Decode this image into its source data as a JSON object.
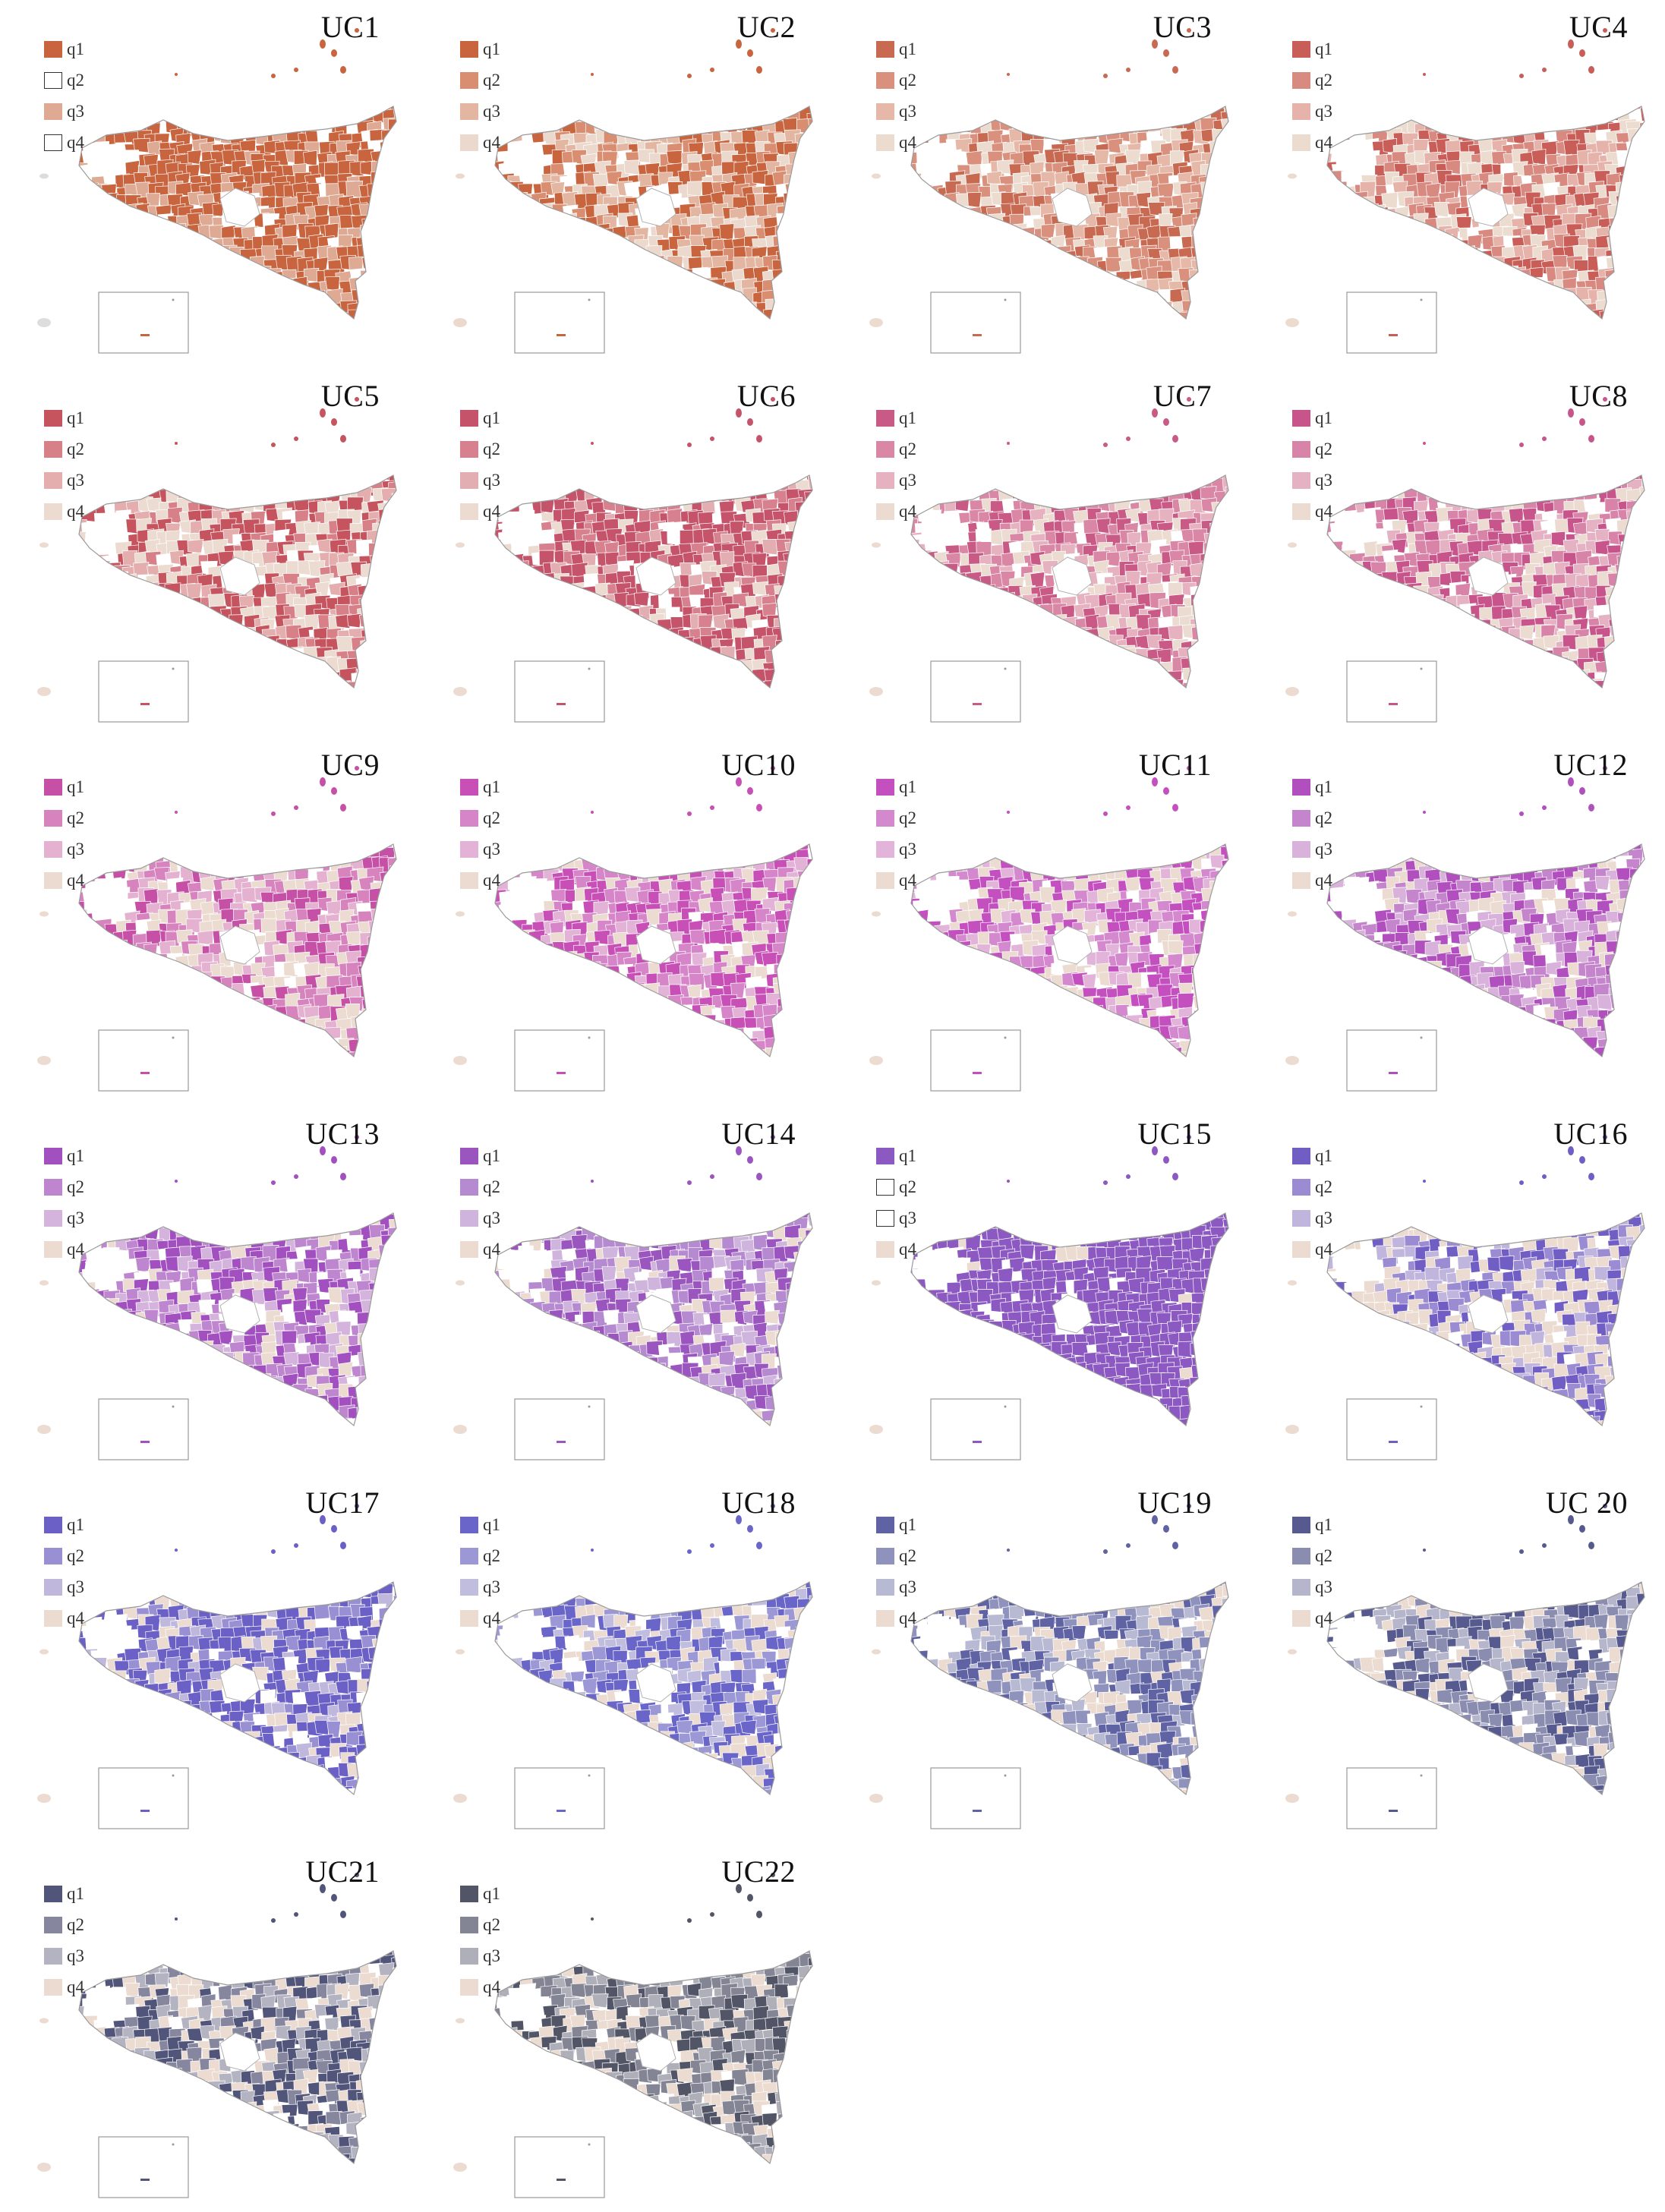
{
  "figure": {
    "legend_labels": [
      "q1",
      "q2",
      "q3",
      "q4"
    ],
    "panels": [
      {
        "title": "UC1",
        "palette": [
          "#c8643e",
          "empty",
          "#dfaa94",
          "empty"
        ],
        "weights": [
          0.72,
          0.0,
          0.28,
          0.0
        ]
      },
      {
        "title": "UC2",
        "palette": [
          "#c8643e",
          "#d98e72",
          "#e3b6a2",
          "#ecd9cd"
        ],
        "weights": [
          0.35,
          0.25,
          0.2,
          0.2
        ]
      },
      {
        "title": "UC3",
        "palette": [
          "#c86a52",
          "#d9917e",
          "#e6b8a8",
          "#ecdcd0"
        ],
        "weights": [
          0.3,
          0.3,
          0.2,
          0.2
        ]
      },
      {
        "title": "UC4",
        "palette": [
          "#c85e57",
          "#d88a80",
          "#e6b3ab",
          "#ecdcd0"
        ],
        "weights": [
          0.3,
          0.3,
          0.2,
          0.2
        ]
      },
      {
        "title": "UC5",
        "palette": [
          "#c5545e",
          "#d88088",
          "#e5aeae",
          "#ebdbd0"
        ],
        "weights": [
          0.35,
          0.15,
          0.15,
          0.35
        ]
      },
      {
        "title": "UC6",
        "palette": [
          "#c5536a",
          "#d7808e",
          "#e3aeb2",
          "#ebdbd0"
        ],
        "weights": [
          0.55,
          0.2,
          0.1,
          0.15
        ]
      },
      {
        "title": "UC7",
        "palette": [
          "#c95985",
          "#d987a4",
          "#e6b2c0",
          "#ebdbd0"
        ],
        "weights": [
          0.3,
          0.3,
          0.2,
          0.2
        ]
      },
      {
        "title": "UC8",
        "palette": [
          "#c7548a",
          "#d884a8",
          "#e5b2c4",
          "#ebdbd0"
        ],
        "weights": [
          0.3,
          0.3,
          0.2,
          0.2
        ]
      },
      {
        "title": "UC9",
        "palette": [
          "#c650a6",
          "#d784be",
          "#e4b2d0",
          "#ebdbd0"
        ],
        "weights": [
          0.25,
          0.25,
          0.25,
          0.25
        ]
      },
      {
        "title": "UC10",
        "palette": [
          "#c74fb6",
          "#d686c8",
          "#e3b3d7",
          "#ebdbd0"
        ],
        "weights": [
          0.4,
          0.3,
          0.15,
          0.15
        ]
      },
      {
        "title": "UC11",
        "palette": [
          "#c450c0",
          "#d488cd",
          "#e2b4da",
          "#ebdbd0"
        ],
        "weights": [
          0.3,
          0.2,
          0.2,
          0.3
        ]
      },
      {
        "title": "UC12",
        "palette": [
          "#b04fbd",
          "#c485cc",
          "#d8b2db",
          "#ebdbd0"
        ],
        "weights": [
          0.3,
          0.3,
          0.2,
          0.2
        ]
      },
      {
        "title": "UC13",
        "palette": [
          "#a24fc0",
          "#bd86cf",
          "#d4b3dc",
          "#ebdbd0"
        ],
        "weights": [
          0.35,
          0.3,
          0.2,
          0.15
        ]
      },
      {
        "title": "UC14",
        "palette": [
          "#9a55bf",
          "#b58ad0",
          "#cfb5dd",
          "#ebdbd0"
        ],
        "weights": [
          0.35,
          0.3,
          0.2,
          0.15
        ]
      },
      {
        "title": "UC15",
        "palette": [
          "#8c58c2",
          "empty",
          "empty",
          "#ebdbd0"
        ],
        "weights": [
          0.97,
          0.0,
          0.0,
          0.03
        ]
      },
      {
        "title": "UC16",
        "palette": [
          "#705ec4",
          "#9a8bd2",
          "#c0b5dc",
          "#ebdbd0"
        ],
        "weights": [
          0.25,
          0.2,
          0.15,
          0.4
        ]
      },
      {
        "title": "UC17",
        "palette": [
          "#6a60c6",
          "#9890d2",
          "#bfb7dc",
          "#ebdbd0"
        ],
        "weights": [
          0.5,
          0.2,
          0.1,
          0.2
        ]
      },
      {
        "title": "UC18",
        "palette": [
          "#6a66c9",
          "#9c98d6",
          "#c0bddf",
          "#ebdbd0"
        ],
        "weights": [
          0.4,
          0.2,
          0.15,
          0.25
        ]
      },
      {
        "title": "UC19",
        "palette": [
          "#5f62a3",
          "#8f92bc",
          "#b8b9d2",
          "#ebdbd0"
        ],
        "weights": [
          0.3,
          0.3,
          0.2,
          0.2
        ]
      },
      {
        "title": "UC 20",
        "palette": [
          "#575a8f",
          "#8a8cb0",
          "#b5b5cb",
          "#ebdbd0"
        ],
        "weights": [
          0.3,
          0.3,
          0.2,
          0.2
        ]
      },
      {
        "title": "UC21",
        "palette": [
          "#52557a",
          "#86879e",
          "#b4b3c1",
          "#ebdbd0"
        ],
        "weights": [
          0.3,
          0.2,
          0.2,
          0.3
        ]
      },
      {
        "title": "UC22",
        "palette": [
          "#525566",
          "#838595",
          "#afafb9",
          "#ebdbd0"
        ],
        "weights": [
          0.3,
          0.3,
          0.2,
          0.2
        ]
      }
    ]
  }
}
